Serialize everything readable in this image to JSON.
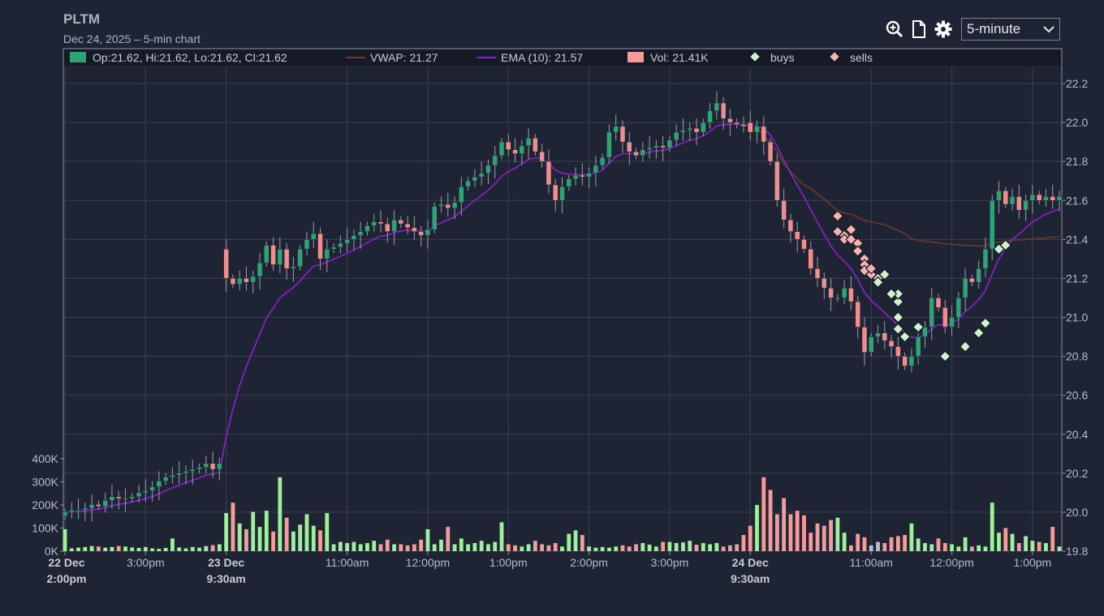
{
  "header": {
    "symbol": "PLTM",
    "subtitle": "Dec 24, 2025 – 5-min chart",
    "interval": "5-minute",
    "icons": [
      "zoom-in-icon",
      "document-icon",
      "gear-icon",
      "chevron-down-icon"
    ]
  },
  "legend": {
    "ohlc": "Op:21.62, Hi:21.62, Lo:21.62, Cl:21.62",
    "vwap": "VWAP: 21.27",
    "ema": "EMA (10): 21.57",
    "volume": "Vol: 21.41K",
    "buys": "buys",
    "sells": "sells"
  },
  "colors": {
    "background": "#1f2435",
    "grid": "#3a4052",
    "up": "#2fa374",
    "down": "#ef8e8e",
    "ema": "#8a22cc",
    "vwap": "#6e3a24",
    "buy_marker": "#cdf5cd",
    "sell_marker": "#f6b3b3",
    "volume_up": "#9ef09a",
    "volume_down": "#f49b9b",
    "volume_neutral": "#bdbdbd"
  },
  "chart_data": {
    "type": "candlestick",
    "price_axis": {
      "min": 19.8,
      "max": 22.2,
      "ticks": [
        "22.2",
        "22.0",
        "21.8",
        "21.6",
        "21.4",
        "21.2",
        "21.0",
        "20.8",
        "20.6",
        "20.4",
        "20.2",
        "20.0",
        "19.8"
      ]
    },
    "volume_axis": {
      "max": 400000,
      "ticks": [
        "400K",
        "300K",
        "200K",
        "100K",
        "0K"
      ]
    },
    "x_ticks": [
      {
        "label": "22 Dec",
        "label2": "2:00pm",
        "bold": true
      },
      {
        "label": "3:00pm"
      },
      {
        "label": "23 Dec",
        "label2": "9:30am",
        "bold": true
      },
      {
        "label": "11:00am"
      },
      {
        "label": "12:00pm"
      },
      {
        "label": "1:00pm"
      },
      {
        "label": "2:00pm"
      },
      {
        "label": "3:00pm"
      },
      {
        "label": "24 Dec",
        "label2": "9:30am",
        "bold": true
      },
      {
        "label": "11:00am"
      },
      {
        "label": "12:00pm"
      },
      {
        "label": "1:00pm"
      }
    ],
    "x_tick_bars": [
      0,
      12,
      24,
      42,
      54,
      66,
      78,
      90,
      102,
      120,
      132,
      144
    ],
    "close": [
      20.0,
      20.01,
      20.01,
      20.02,
      20.04,
      20.03,
      20.06,
      20.08,
      20.07,
      20.07,
      20.08,
      20.1,
      20.11,
      20.13,
      20.16,
      20.18,
      20.19,
      20.2,
      20.21,
      20.22,
      20.23,
      20.25,
      20.22,
      20.25,
      21.2,
      21.17,
      21.2,
      21.18,
      21.21,
      21.28,
      21.37,
      21.27,
      21.35,
      21.25,
      21.26,
      21.35,
      21.4,
      21.43,
      21.3,
      21.35,
      21.36,
      21.38,
      21.4,
      21.42,
      21.44,
      21.47,
      21.49,
      21.48,
      21.44,
      21.5,
      21.48,
      21.46,
      21.44,
      21.42,
      21.45,
      21.57,
      21.58,
      21.56,
      21.59,
      21.67,
      21.7,
      21.72,
      21.74,
      21.78,
      21.83,
      21.9,
      21.86,
      21.84,
      21.88,
      21.92,
      21.85,
      21.8,
      21.68,
      21.6,
      21.67,
      21.71,
      21.73,
      21.72,
      21.74,
      21.78,
      21.82,
      21.95,
      21.98,
      21.9,
      21.85,
      21.83,
      21.86,
      21.87,
      21.88,
      21.87,
      21.91,
      21.95,
      21.96,
      21.97,
      21.95,
      22.0,
      22.06,
      22.1,
      22.02,
      22.0,
      21.99,
      21.98,
      21.95,
      21.98,
      21.9,
      21.8,
      21.6,
      21.5,
      21.44,
      21.4,
      21.35,
      21.25,
      21.2,
      21.15,
      21.1,
      21.1,
      21.15,
      21.08,
      20.95,
      20.82,
      20.9,
      20.92,
      20.88,
      20.85,
      20.8,
      20.75,
      20.8,
      20.9,
      20.95,
      21.1,
      21.05,
      20.95,
      21.0,
      21.1,
      21.2,
      21.18,
      21.25,
      21.35,
      21.6,
      21.65,
      21.58,
      21.62,
      21.55,
      21.6,
      21.63,
      21.6,
      21.62,
      21.6,
      21.62
    ],
    "volume_k": [
      95,
      12,
      15,
      18,
      22,
      20,
      15,
      18,
      22,
      20,
      16,
      14,
      18,
      12,
      10,
      14,
      55,
      16,
      12,
      18,
      15,
      22,
      26,
      30,
      165,
      210,
      120,
      95,
      170,
      105,
      175,
      85,
      320,
      145,
      85,
      115,
      160,
      110,
      90,
      165,
      30,
      40,
      35,
      40,
      30,
      35,
      45,
      30,
      50,
      30,
      30,
      25,
      30,
      50,
      95,
      30,
      50,
      105,
      30,
      55,
      30,
      35,
      45,
      30,
      40,
      125,
      30,
      25,
      20,
      30,
      45,
      30,
      25,
      35,
      20,
      75,
      90,
      70,
      20,
      15,
      18,
      15,
      20,
      25,
      20,
      30,
      35,
      28,
      20,
      40,
      40,
      35,
      38,
      45,
      28,
      35,
      30,
      35,
      20,
      25,
      30,
      70,
      110,
      200,
      320,
      265,
      160,
      230,
      160,
      175,
      155,
      80,
      120,
      110,
      135,
      145,
      80,
      25,
      75,
      60,
      25,
      40,
      35,
      60,
      65,
      70,
      120,
      55,
      35,
      30,
      55,
      35,
      30,
      20,
      60,
      20,
      25,
      20,
      210,
      80,
      100,
      75,
      35,
      65,
      45,
      40,
      35,
      105,
      20
    ],
    "buys": [
      [
        124,
        20.94
      ],
      [
        124,
        21.0
      ],
      [
        124,
        21.08
      ],
      [
        124,
        21.12
      ],
      [
        123,
        21.12
      ],
      [
        121,
        21.18
      ],
      [
        122,
        21.22
      ],
      [
        125,
        20.9
      ],
      [
        127,
        20.95
      ],
      [
        131,
        20.8
      ],
      [
        134,
        20.85
      ],
      [
        136,
        20.92
      ],
      [
        137,
        20.97
      ],
      [
        139,
        21.35
      ],
      [
        140,
        21.37
      ]
    ],
    "sells": [
      [
        115,
        21.52
      ],
      [
        115,
        21.44
      ],
      [
        116,
        21.42
      ],
      [
        116,
        21.4
      ],
      [
        117,
        21.45
      ],
      [
        117,
        21.4
      ],
      [
        118,
        21.38
      ],
      [
        118,
        21.34
      ],
      [
        119,
        21.3
      ],
      [
        119,
        21.27
      ],
      [
        119,
        21.24
      ],
      [
        120,
        21.22
      ],
      [
        120,
        21.25
      ],
      [
        121,
        21.2
      ]
    ]
  }
}
